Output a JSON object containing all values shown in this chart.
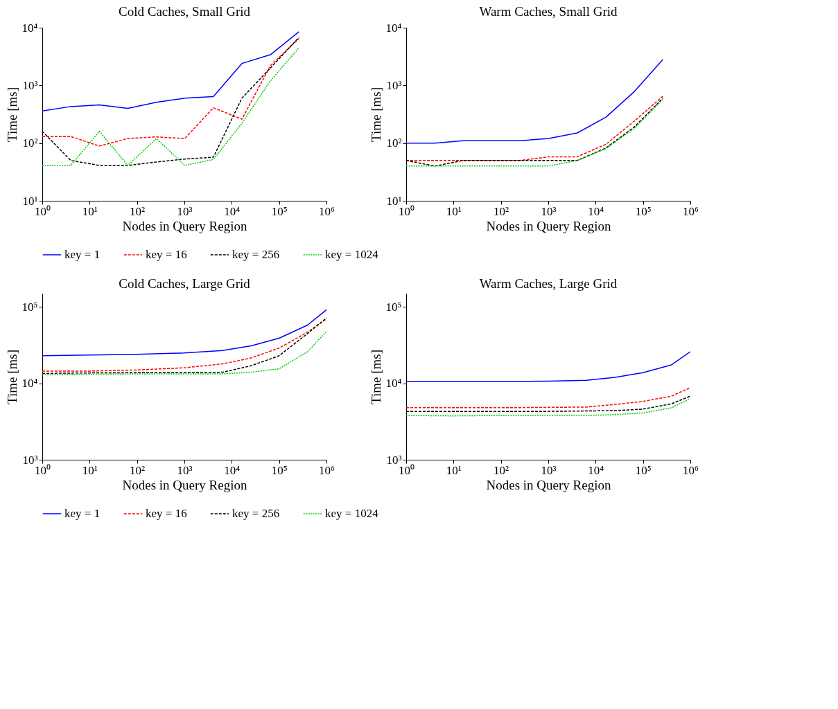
{
  "chart_data": [
    {
      "type": "line",
      "title": "Cold Caches, Small Grid",
      "xlabel": "Nodes in Query Region",
      "ylabel": "Time [ms]",
      "log": "xy",
      "legend": "bottom",
      "x": [
        1,
        4,
        16,
        64,
        256,
        1024,
        4096,
        16384,
        65536,
        262144
      ],
      "xlim": [
        1,
        1000000
      ],
      "xticks": [
        {
          "value": 1,
          "label": "10⁰"
        },
        {
          "value": 10,
          "label": "10¹"
        },
        {
          "value": 100,
          "label": "10²"
        },
        {
          "value": 1000,
          "label": "10³"
        },
        {
          "value": 10000,
          "label": "10⁴"
        },
        {
          "value": 100000,
          "label": "10⁵"
        },
        {
          "value": 1000000,
          "label": "10⁶"
        }
      ],
      "ylim": [
        10,
        10000
      ],
      "yticks": [
        {
          "value": 10,
          "label": "10¹"
        },
        {
          "value": 100,
          "label": "10²"
        },
        {
          "value": 1000,
          "label": "10³"
        },
        {
          "value": 10000,
          "label": "10⁴"
        }
      ],
      "series": [
        {
          "name": "key = 1",
          "color": "#0000ff",
          "line_style": "solid",
          "values": [
            360,
            430,
            460,
            400,
            510,
            600,
            640,
            2400,
            3400,
            8500
          ]
        },
        {
          "name": "key = 16",
          "color": "#ff0000",
          "line_style": "dashed",
          "values": [
            130,
            130,
            89,
            120,
            128,
            120,
            410,
            260,
            2200,
            6500
          ]
        },
        {
          "name": "key = 256",
          "color": "#000000",
          "line_style": "dashed",
          "values": [
            160,
            50,
            41,
            41,
            47,
            53,
            57,
            600,
            2000,
            6800
          ]
        },
        {
          "name": "key = 1024",
          "color": "#00cc00",
          "line_style": "dotted",
          "values": [
            41,
            41,
            160,
            41,
            120,
            41,
            52,
            220,
            1200,
            4500
          ]
        }
      ]
    },
    {
      "type": "line",
      "title": "Warm Caches, Small Grid",
      "xlabel": "Nodes in Query Region",
      "ylabel": "Time [ms]",
      "log": "xy",
      "legend": "bottom",
      "x": [
        1,
        4,
        16,
        64,
        256,
        1024,
        4096,
        16384,
        65536,
        262144
      ],
      "xlim": [
        1,
        1000000
      ],
      "xticks": [
        {
          "value": 1,
          "label": "10⁰"
        },
        {
          "value": 10,
          "label": "10¹"
        },
        {
          "value": 100,
          "label": "10²"
        },
        {
          "value": 1000,
          "label": "10³"
        },
        {
          "value": 10000,
          "label": "10⁴"
        },
        {
          "value": 100000,
          "label": "10⁵"
        },
        {
          "value": 1000000,
          "label": "10⁶"
        }
      ],
      "ylim": [
        10,
        10000
      ],
      "yticks": [
        {
          "value": 10,
          "label": "10¹"
        },
        {
          "value": 100,
          "label": "10²"
        },
        {
          "value": 1000,
          "label": "10³"
        },
        {
          "value": 10000,
          "label": "10⁴"
        }
      ],
      "series": [
        {
          "name": "key = 1",
          "color": "#0000ff",
          "line_style": "solid",
          "values": [
            100,
            100,
            110,
            110,
            110,
            120,
            150,
            280,
            780,
            2800
          ]
        },
        {
          "name": "key = 16",
          "color": "#ff0000",
          "line_style": "dashed",
          "values": [
            50,
            50,
            50,
            50,
            50,
            58,
            58,
            95,
            240,
            650
          ]
        },
        {
          "name": "key = 256",
          "color": "#000000",
          "line_style": "dashed",
          "values": [
            50,
            40,
            50,
            50,
            50,
            50,
            50,
            82,
            190,
            600
          ]
        },
        {
          "name": "key = 1024",
          "color": "#00cc00",
          "line_style": "dotted",
          "values": [
            40,
            40,
            40,
            40,
            40,
            40,
            50,
            80,
            180,
            570
          ]
        }
      ]
    },
    {
      "type": "line",
      "title": "Cold Caches, Large Grid",
      "xlabel": "Nodes in Query Region",
      "ylabel": "Time [ms]",
      "log": "xy",
      "legend": "bottom",
      "x": [
        1,
        10,
        100,
        1000,
        6400,
        25600,
        100000,
        400000,
        1000000
      ],
      "xlim": [
        1,
        1000000
      ],
      "xticks": [
        {
          "value": 1,
          "label": "10⁰"
        },
        {
          "value": 10,
          "label": "10¹"
        },
        {
          "value": 100,
          "label": "10²"
        },
        {
          "value": 1000,
          "label": "10³"
        },
        {
          "value": 10000,
          "label": "10⁴"
        },
        {
          "value": 100000,
          "label": "10⁵"
        },
        {
          "value": 1000000,
          "label": "10⁶"
        }
      ],
      "ylim": [
        1000,
        150000
      ],
      "yticks": [
        {
          "value": 1000,
          "label": "10³"
        },
        {
          "value": 10000,
          "label": "10⁴"
        },
        {
          "value": 100000,
          "label": "10⁵"
        }
      ],
      "series": [
        {
          "name": "key = 1",
          "color": "#0000ff",
          "line_style": "solid",
          "values": [
            23000,
            23500,
            24000,
            25000,
            27000,
            31000,
            39000,
            58000,
            92000
          ]
        },
        {
          "name": "key = 16",
          "color": "#ff0000",
          "line_style": "dashed",
          "values": [
            14500,
            14500,
            15000,
            16000,
            18000,
            21500,
            29000,
            47000,
            70000
          ]
        },
        {
          "name": "key = 256",
          "color": "#000000",
          "line_style": "dashed",
          "values": [
            13500,
            13700,
            13800,
            13800,
            14000,
            17000,
            23000,
            45000,
            72000
          ]
        },
        {
          "name": "key = 1024",
          "color": "#00cc00",
          "line_style": "dotted",
          "values": [
            13000,
            13200,
            13300,
            13300,
            13300,
            14000,
            15500,
            26000,
            48000
          ]
        }
      ]
    },
    {
      "type": "line",
      "title": "Warm Caches, Large Grid",
      "xlabel": "Nodes in Query Region",
      "ylabel": "Time [ms]",
      "log": "xy",
      "legend": "bottom",
      "x": [
        1,
        10,
        100,
        1000,
        6400,
        25600,
        100000,
        400000,
        1000000
      ],
      "xlim": [
        1,
        1000000
      ],
      "xticks": [
        {
          "value": 1,
          "label": "10⁰"
        },
        {
          "value": 10,
          "label": "10¹"
        },
        {
          "value": 100,
          "label": "10²"
        },
        {
          "value": 1000,
          "label": "10³"
        },
        {
          "value": 10000,
          "label": "10⁴"
        },
        {
          "value": 100000,
          "label": "10⁵"
        },
        {
          "value": 1000000,
          "label": "10⁶"
        }
      ],
      "ylim": [
        1000,
        150000
      ],
      "yticks": [
        {
          "value": 1000,
          "label": "10³"
        },
        {
          "value": 10000,
          "label": "10⁴"
        },
        {
          "value": 100000,
          "label": "10⁵"
        }
      ],
      "series": [
        {
          "name": "key = 1",
          "color": "#0000ff",
          "line_style": "solid",
          "values": [
            10500,
            10500,
            10500,
            10700,
            11000,
            12000,
            13800,
            17500,
            26000
          ]
        },
        {
          "name": "key = 16",
          "color": "#ff0000",
          "line_style": "dashed",
          "values": [
            4800,
            4800,
            4800,
            4850,
            4900,
            5300,
            5800,
            6800,
            8800
          ]
        },
        {
          "name": "key = 256",
          "color": "#000000",
          "line_style": "dashed",
          "values": [
            4300,
            4300,
            4300,
            4300,
            4350,
            4400,
            4600,
            5400,
            6800
          ]
        },
        {
          "name": "key = 1024",
          "color": "#00cc00",
          "line_style": "dotted",
          "values": [
            3800,
            3750,
            3800,
            3800,
            3800,
            3900,
            4100,
            4800,
            6300
          ]
        }
      ]
    }
  ]
}
